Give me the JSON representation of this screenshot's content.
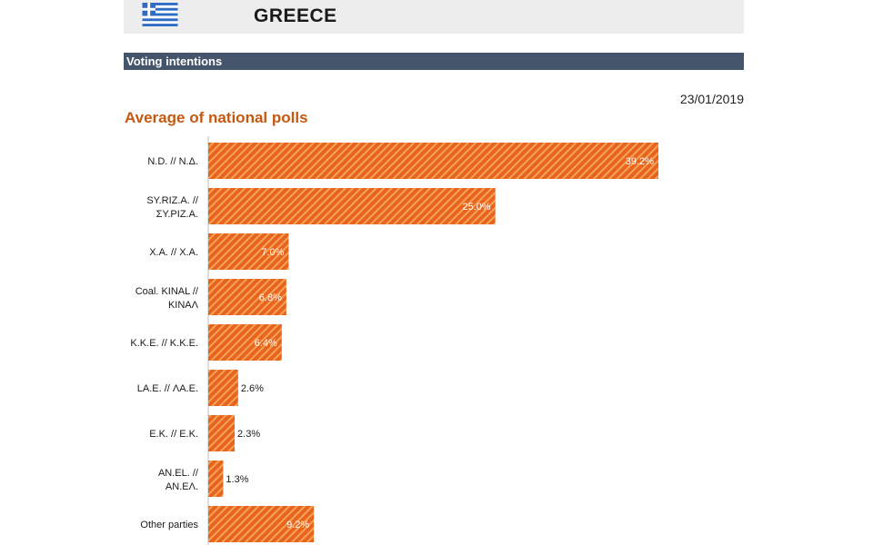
{
  "header": {
    "country": "GREECE",
    "flag_icon": "greek-flag-icon"
  },
  "section": {
    "title": "Voting intentions"
  },
  "date": "23/01/2019",
  "colors": {
    "bar": "#e8641c",
    "bar_stripe": "#f6a25a",
    "section_bar": "#44546a",
    "title": "#c65911"
  },
  "chart_data": {
    "type": "bar",
    "orientation": "horizontal",
    "title": "Average of national polls",
    "categories": [
      [
        "N.D. // Ν.Δ."
      ],
      [
        "SY.RIZ.A. //",
        "ΣΥ.ΡΙΖ.Α."
      ],
      [
        "X.A. // Χ.Α."
      ],
      [
        "Coal. KINAL //",
        "ΚΙΝΑΛ"
      ],
      [
        "K.K.E. // Κ.Κ.Ε."
      ],
      [
        "LA.E. // ΛΑ.Ε."
      ],
      [
        "E.K. // Ε.Κ."
      ],
      [
        "AN.EL. //",
        "ΑΝ.ΕΛ."
      ],
      [
        "Other parties"
      ]
    ],
    "values": [
      39.2,
      25.0,
      7.0,
      6.8,
      6.4,
      2.6,
      2.3,
      1.3,
      9.2
    ],
    "value_labels": [
      "39.2%",
      "25.0%",
      "7.0%",
      "6.8%",
      "6.4%",
      "2.6%",
      "2.3%",
      "1.3%",
      "9.2%"
    ],
    "xlim": [
      0,
      40
    ],
    "grid": false
  }
}
